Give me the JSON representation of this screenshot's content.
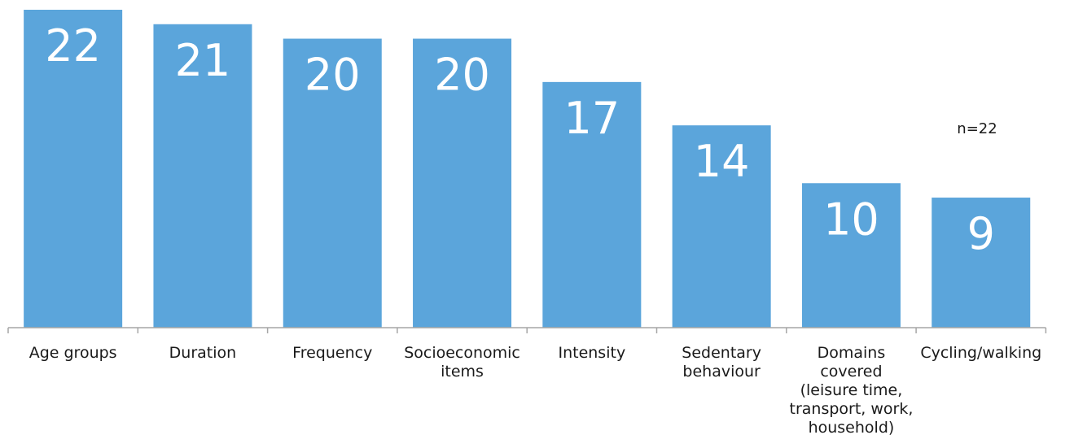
{
  "chart_data": {
    "type": "bar",
    "categories": [
      [
        "Age groups"
      ],
      [
        "Duration"
      ],
      [
        "Frequency"
      ],
      [
        "Socioeconomic",
        "items"
      ],
      [
        "Intensity"
      ],
      [
        "Sedentary",
        "behaviour"
      ],
      [
        "Domains",
        "covered",
        "(leisure time,",
        "transport, work,",
        "household)"
      ],
      [
        "Cycling/walking"
      ]
    ],
    "values": [
      22,
      21,
      20,
      20,
      17,
      14,
      10,
      9
    ],
    "value_labels": [
      "22",
      "21",
      "20",
      "20",
      "17",
      "14",
      "10",
      "9"
    ],
    "annotation": "n=22",
    "title": "",
    "xlabel": "",
    "ylabel": "",
    "ylim": [
      0,
      22
    ],
    "grid": false,
    "legend": "none",
    "bar_color": "#5ba5db",
    "axis_color": "#a6a6a6"
  }
}
